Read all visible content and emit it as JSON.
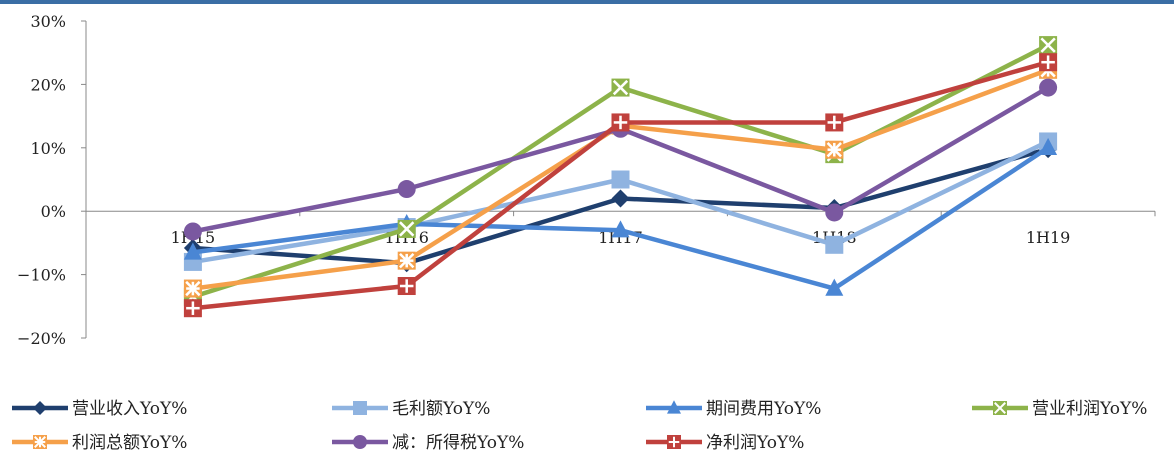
{
  "chart_data": {
    "type": "line",
    "categories": [
      "1H15",
      "1H16",
      "1H17",
      "1H18",
      "1H19"
    ],
    "ylim": [
      -20,
      30
    ],
    "yticks": [
      -20,
      -10,
      0,
      10,
      20,
      30
    ],
    "ytick_labels": [
      "−20%",
      "−10%",
      "0%",
      "10%",
      "20%",
      "30%"
    ],
    "grid": false,
    "legend_position": "bottom",
    "series": [
      {
        "name": "营业收入YoY%",
        "color": "#1f3f6e",
        "marker": "diamond",
        "values": [
          -5.8,
          -8.2,
          2.0,
          0.5,
          9.8
        ]
      },
      {
        "name": "毛利额YoY%",
        "color": "#8fb3e0",
        "marker": "square",
        "values": [
          -8.0,
          -2.5,
          5.0,
          -5.3,
          11.0
        ]
      },
      {
        "name": "期间费用YoY%",
        "color": "#4a86d4",
        "marker": "triangle",
        "values": [
          -6.5,
          -2.0,
          -3.0,
          -12.2,
          10.0
        ]
      },
      {
        "name": "营业利润YoY%",
        "color": "#8db34a",
        "marker": "x-box",
        "values": [
          -13.5,
          -2.8,
          19.5,
          9.0,
          26.2
        ]
      },
      {
        "name": "利润总额YoY%",
        "color": "#f5a04a",
        "marker": "asterisk-box",
        "values": [
          -12.2,
          -7.8,
          13.5,
          9.7,
          22.3
        ]
      },
      {
        "name": "减：所得税YoY%",
        "color": "#7a58a0",
        "marker": "circle",
        "values": [
          -3.2,
          3.5,
          13.0,
          -0.2,
          19.5
        ]
      },
      {
        "name": "净利润YoY%",
        "color": "#c0413d",
        "marker": "plus-box",
        "values": [
          -15.3,
          -11.8,
          14.0,
          14.0,
          23.5
        ]
      }
    ]
  }
}
